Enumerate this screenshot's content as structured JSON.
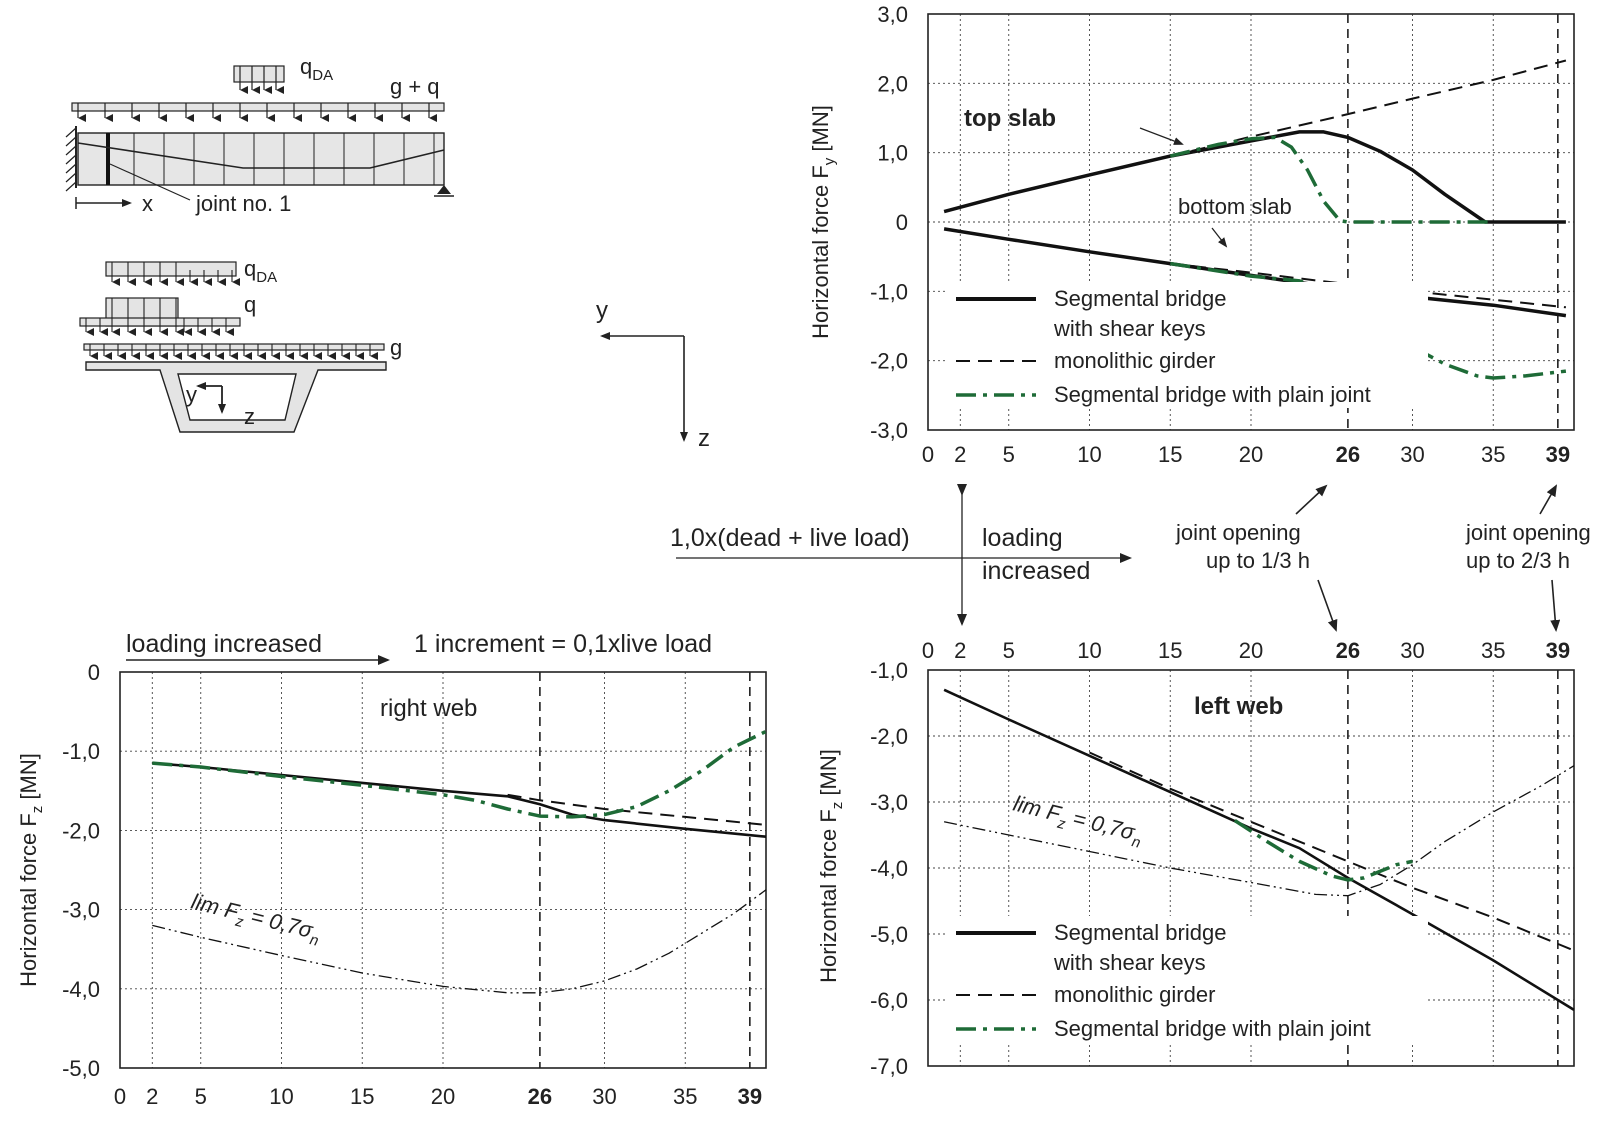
{
  "diagram": {
    "beam": {
      "q_label": "q",
      "q_sub": "DA",
      "gq_label": "g + q",
      "x_label": "x",
      "joint_label": "joint no. 1"
    },
    "section": {
      "qda": "q",
      "qda_sub": "DA",
      "q": "q",
      "g": "g",
      "y": "y",
      "z": "z"
    },
    "axes": {
      "y": "y",
      "z": "z"
    }
  },
  "middle": {
    "load_label": "1,0x(dead + live load)",
    "loading_1": "loading",
    "loading_2": "increased",
    "opening1_1": "joint opening",
    "opening1_2": "up to 1/3 h",
    "opening2_1": "joint opening",
    "opening2_2": "up to 2/3 h"
  },
  "bottom_left_header": {
    "loading": "loading increased",
    "increment": "1 increment = 0,1xlive load"
  },
  "chart_data": [
    {
      "id": "top-slab",
      "type": "line",
      "title": "top slab",
      "annotation": "bottom slab",
      "ylabel": "Horizontal force",
      "ylabel_symbol": "F",
      "ylabel_sub": "y",
      "ylabel_unit": "[MN]",
      "xlim": [
        0,
        40
      ],
      "ylim": [
        -3,
        3
      ],
      "xticks": [
        "0",
        "2",
        "5",
        "10",
        "15",
        "20",
        "26",
        "30",
        "35",
        "39"
      ],
      "xtick_values": [
        0,
        2,
        5,
        10,
        15,
        20,
        26,
        30,
        35,
        39
      ],
      "xticks_bold": [
        "26",
        "39"
      ],
      "yticks": [
        "3,0",
        "2,0",
        "1,0",
        "0",
        "-1,0",
        "-2,0",
        "-3,0"
      ],
      "ytick_values": [
        3,
        2,
        1,
        0,
        -1,
        -2,
        -3
      ],
      "vlines": [
        26,
        39
      ],
      "legend": [
        "Segmental bridge",
        "with shear keys",
        "monolithic girder",
        "Segmental bridge with plain joint"
      ],
      "series": [
        {
          "name": "Segmental bridge with shear keys",
          "style": "solid",
          "color": "#111111",
          "width": 3.5,
          "x": [
            1,
            5,
            10,
            15,
            20,
            23,
            24.5,
            26,
            28,
            30,
            32,
            34.5,
            35,
            37,
            39.5
          ],
          "y": [
            0.15,
            0.4,
            0.68,
            0.95,
            1.17,
            1.3,
            1.3,
            1.22,
            1.02,
            0.75,
            0.4,
            0,
            0,
            0,
            0
          ]
        },
        {
          "name": "monolithic girder",
          "style": "dash",
          "color": "#111111",
          "width": 2,
          "x": [
            15,
            20,
            25,
            30,
            35,
            39.5
          ],
          "y": [
            0.95,
            1.23,
            1.5,
            1.78,
            2.05,
            2.33
          ]
        },
        {
          "name": "Segmental bridge with plain joint",
          "style": "dashdot",
          "color": "#1e6b37",
          "width": 3.5,
          "x": [
            15,
            18,
            20,
            21.5,
            22.5,
            23.5,
            24.5,
            25.5,
            26,
            28,
            30,
            32,
            35
          ],
          "y": [
            0.95,
            1.12,
            1.2,
            1.22,
            1.08,
            0.75,
            0.3,
            0.02,
            0,
            0,
            0,
            0,
            0
          ]
        },
        {
          "name": "Segmental bridge with shear keys",
          "style": "solid",
          "color": "#111111",
          "width": 3.5,
          "x": [
            1,
            5,
            10,
            15,
            20,
            25,
            30,
            35,
            39.5
          ],
          "y": [
            -0.1,
            -0.25,
            -0.43,
            -0.6,
            -0.77,
            -0.94,
            -1.08,
            -1.2,
            -1.35
          ]
        },
        {
          "name": "monolithic girder",
          "style": "dash",
          "color": "#111111",
          "width": 2,
          "x": [
            15,
            20,
            25,
            30,
            35,
            39.5
          ],
          "y": [
            -0.6,
            -0.73,
            -0.87,
            -1.0,
            -1.12,
            -1.23
          ]
        },
        {
          "name": "Segmental bridge with plain joint",
          "style": "dashdot",
          "color": "#1e6b37",
          "width": 3.5,
          "x": [
            15,
            20,
            23,
            25,
            26,
            28,
            30,
            32,
            34,
            35,
            37,
            39.5
          ],
          "y": [
            -0.6,
            -0.78,
            -0.85,
            -1.0,
            -1.1,
            -1.45,
            -1.8,
            -2.05,
            -2.22,
            -2.25,
            -2.22,
            -2.15
          ]
        }
      ]
    },
    {
      "id": "right-web",
      "type": "line",
      "title": "right web",
      "ylabel": "Horizontal force",
      "ylabel_symbol": "F",
      "ylabel_sub": "z",
      "ylabel_unit": "[MN]",
      "limit_label": "lim F",
      "limit_sub": "z",
      "limit_rest": " = 0,7σ",
      "limit_sub2": "n",
      "xlim": [
        0,
        40
      ],
      "ylim": [
        -5,
        0
      ],
      "xticks": [
        "0",
        "2",
        "5",
        "10",
        "15",
        "20",
        "26",
        "30",
        "35",
        "39"
      ],
      "xtick_values": [
        0,
        2,
        5,
        10,
        15,
        20,
        26,
        30,
        35,
        39
      ],
      "xticks_bold": [
        "26",
        "39"
      ],
      "yticks": [
        "0",
        "-1,0",
        "-2,0",
        "-3,0",
        "-4,0",
        "-5,0"
      ],
      "ytick_values": [
        0,
        -1,
        -2,
        -3,
        -4,
        -5
      ],
      "vlines": [
        26,
        39
      ],
      "series": [
        {
          "name": "Segmental bridge with shear keys",
          "style": "solid",
          "color": "#111111",
          "width": 2.6,
          "x": [
            2,
            5,
            10,
            15,
            20,
            24,
            26,
            28,
            30,
            35,
            40
          ],
          "y": [
            -1.15,
            -1.2,
            -1.3,
            -1.4,
            -1.5,
            -1.57,
            -1.67,
            -1.8,
            -1.87,
            -1.98,
            -2.08
          ]
        },
        {
          "name": "monolithic girder",
          "style": "dash",
          "color": "#111111",
          "width": 2,
          "x": [
            24,
            26,
            30,
            35,
            40
          ],
          "y": [
            -1.55,
            -1.62,
            -1.73,
            -1.83,
            -1.93
          ]
        },
        {
          "name": "Segmental bridge with plain joint",
          "style": "dashdot",
          "color": "#1e6b37",
          "width": 3.5,
          "x": [
            2,
            5,
            10,
            15,
            20,
            22,
            24,
            26,
            28,
            30,
            32,
            34,
            36,
            38,
            40
          ],
          "y": [
            -1.15,
            -1.2,
            -1.32,
            -1.43,
            -1.55,
            -1.62,
            -1.73,
            -1.82,
            -1.83,
            -1.8,
            -1.7,
            -1.5,
            -1.25,
            -0.95,
            -0.75
          ]
        },
        {
          "name": "lim Fz = 0,7σn",
          "style": "dashdotdot",
          "color": "#111111",
          "width": 1.3,
          "x": [
            2,
            5,
            10,
            15,
            20,
            24,
            26,
            28,
            30,
            32,
            34,
            36,
            38,
            40
          ],
          "y": [
            -3.2,
            -3.35,
            -3.58,
            -3.8,
            -3.97,
            -4.05,
            -4.05,
            -4.0,
            -3.9,
            -3.75,
            -3.55,
            -3.3,
            -3.05,
            -2.75
          ]
        }
      ]
    },
    {
      "id": "left-web",
      "type": "line",
      "title": "left web",
      "ylabel": "Horizontal force",
      "ylabel_symbol": "F",
      "ylabel_sub": "z",
      "ylabel_unit": "[MN]",
      "limit_label": "lim F",
      "limit_sub": "z",
      "limit_rest": " = 0,7σ",
      "limit_sub2": "n",
      "xlim": [
        0,
        40
      ],
      "ylim": [
        -7,
        -1
      ],
      "xticks": [
        "0",
        "2",
        "5",
        "10",
        "15",
        "20",
        "26",
        "30",
        "35",
        "39"
      ],
      "xtick_values": [
        0,
        2,
        5,
        10,
        15,
        20,
        26,
        30,
        35,
        39
      ],
      "xticks_bold": [
        "26",
        "39"
      ],
      "yticks": [
        "-1,0",
        "-2,0",
        "-3,0",
        "-4,0",
        "-5,0",
        "-6,0",
        "-7,0"
      ],
      "ytick_values": [
        -1,
        -2,
        -3,
        -4,
        -5,
        -6,
        -7
      ],
      "vlines": [
        26,
        39
      ],
      "legend": [
        "Segmental bridge",
        "with shear keys",
        "monolithic girder",
        "Segmental bridge with plain joint"
      ],
      "series": [
        {
          "name": "Segmental bridge with shear keys",
          "style": "solid",
          "color": "#111111",
          "width": 2.6,
          "x": [
            1,
            5,
            10,
            15,
            20,
            23,
            26,
            30,
            35,
            40
          ],
          "y": [
            -1.3,
            -1.75,
            -2.3,
            -2.85,
            -3.4,
            -3.7,
            -4.15,
            -4.7,
            -5.4,
            -6.15
          ]
        },
        {
          "name": "monolithic girder",
          "style": "dash",
          "color": "#111111",
          "width": 2,
          "x": [
            10,
            15,
            20,
            25,
            30,
            35,
            40
          ],
          "y": [
            -2.25,
            -2.8,
            -3.3,
            -3.8,
            -4.3,
            -4.75,
            -5.25
          ]
        },
        {
          "name": "Segmental bridge with plain joint",
          "style": "dashdot",
          "color": "#1e6b37",
          "width": 3.5,
          "x": [
            19,
            21,
            23,
            25,
            26,
            27,
            28,
            29,
            30
          ],
          "y": [
            -3.28,
            -3.6,
            -3.9,
            -4.12,
            -4.18,
            -4.15,
            -4.05,
            -3.95,
            -3.9
          ]
        },
        {
          "name": "lim Fz = 0,7σn",
          "style": "dashdotdot",
          "color": "#111111",
          "width": 1.3,
          "x": [
            1,
            5,
            10,
            15,
            20,
            24,
            26,
            28,
            30,
            32,
            35,
            38,
            40
          ],
          "y": [
            -3.3,
            -3.5,
            -3.75,
            -4.0,
            -4.22,
            -4.4,
            -4.42,
            -4.25,
            -3.95,
            -3.6,
            -3.15,
            -2.75,
            -2.45
          ]
        }
      ]
    }
  ]
}
